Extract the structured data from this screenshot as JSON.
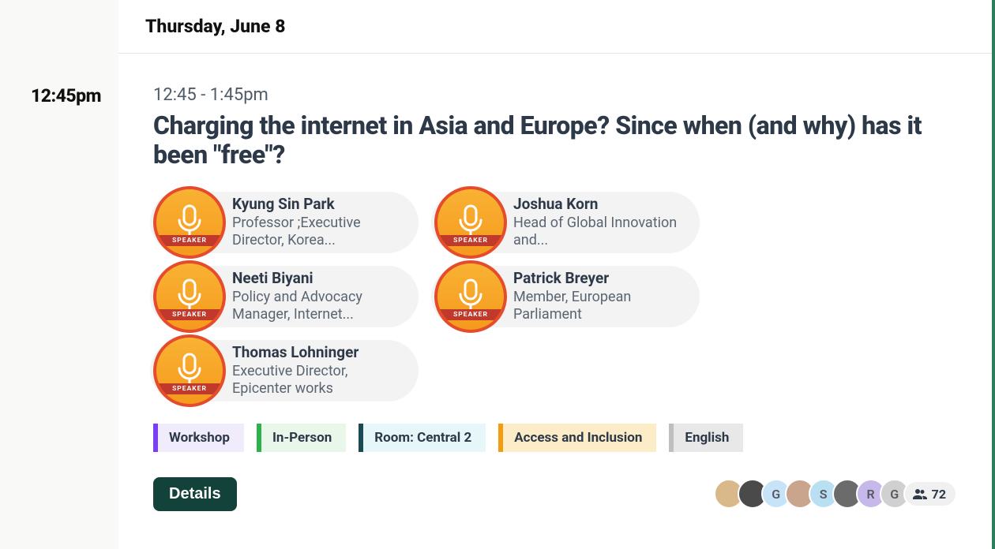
{
  "header": {
    "date_label": "Thursday, June 8"
  },
  "time_col": {
    "slot_label": "12:45pm"
  },
  "session": {
    "time_range": "12:45 - 1:45pm",
    "title": "Charging the internet in Asia and Europe? Since when (and why) has it been \"free\"?",
    "details_label": "Details",
    "speaker_badge": {
      "band_text": "SPEAKER",
      "bg_gradient_top": "#f9b233",
      "bg_gradient_bottom": "#f59a1e",
      "ring_color": "#e44c2c",
      "band_color": "#c0392b",
      "mic_color": "#ffffff"
    },
    "speakers": [
      {
        "name": "Kyung Sin Park",
        "role": "Professor ;Executive Director, Korea..."
      },
      {
        "name": "Joshua Korn",
        "role": "Head of Global Innovation and..."
      },
      {
        "name": "Neeti Biyani",
        "role": "Policy and Advocacy Manager, Internet..."
      },
      {
        "name": "Patrick Breyer",
        "role": "Member, European Parliament"
      },
      {
        "name": "Thomas Lohninger",
        "role": "Executive Director, Epicenter works"
      }
    ],
    "tags": [
      {
        "label": "Workshop",
        "bg": "#f1ecfb",
        "border": "#7a3ff0"
      },
      {
        "label": "In-Person",
        "bg": "#e9f7ea",
        "border": "#2bb24c"
      },
      {
        "label": "Room: Central 2",
        "bg": "#e7f6f9",
        "border": "#1a4b52"
      },
      {
        "label": "Access and Inclusion",
        "bg": "#fdecc8",
        "border": "#f39c12"
      },
      {
        "label": "English",
        "bg": "#e8e8e8",
        "border": "#bfbfbf"
      }
    ],
    "attendees": {
      "count": "72",
      "avatars": [
        {
          "type": "photo",
          "bg": "#d9b88a"
        },
        {
          "type": "photo",
          "bg": "#4a4a4a"
        },
        {
          "type": "letter",
          "bg": "#c6e3f7",
          "letter": "G"
        },
        {
          "type": "photo",
          "bg": "#caa58d"
        },
        {
          "type": "letter",
          "bg": "#b8e0f2",
          "letter": "S"
        },
        {
          "type": "photo",
          "bg": "#6b6b6b"
        },
        {
          "type": "letter",
          "bg": "#c6b8ea",
          "letter": "R"
        },
        {
          "type": "letter",
          "bg": "#d0d0d0",
          "letter": "G"
        }
      ]
    }
  }
}
